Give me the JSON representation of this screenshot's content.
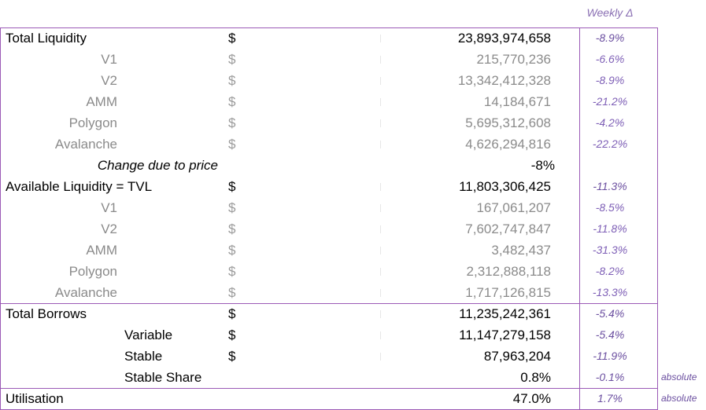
{
  "header": {
    "weekly_delta": "Weekly Δ"
  },
  "rows": [
    {
      "label": "Total Liquidity",
      "dollar": "$",
      "value": "23,893,974,658",
      "pct": "-8.9%",
      "note": ""
    },
    {
      "label": "V1",
      "dollar": "$",
      "value": "215,770,236",
      "pct": "-6.6%",
      "note": ""
    },
    {
      "label": "V2",
      "dollar": "$",
      "value": "13,342,412,328",
      "pct": "-8.9%",
      "note": ""
    },
    {
      "label": "AMM",
      "dollar": "$",
      "value": "14,184,671",
      "pct": "-21.2%",
      "note": ""
    },
    {
      "label": "Polygon",
      "dollar": "$",
      "value": "5,695,312,608",
      "pct": "-4.2%",
      "note": ""
    },
    {
      "label": "Avalanche",
      "dollar": "$",
      "value": "4,626,294,816",
      "pct": "-22.2%",
      "note": ""
    },
    {
      "label": "Change due to price",
      "dollar": "",
      "value": "-8%",
      "pct": "",
      "note": ""
    },
    {
      "label": "Available Liquidity  = TVL",
      "dollar": "$",
      "value": "11,803,306,425",
      "pct": "-11.3%",
      "note": ""
    },
    {
      "label": "V1",
      "dollar": "$",
      "value": "167,061,207",
      "pct": "-8.5%",
      "note": ""
    },
    {
      "label": "V2",
      "dollar": "$",
      "value": "7,602,747,847",
      "pct": "-11.8%",
      "note": ""
    },
    {
      "label": "AMM",
      "dollar": "$",
      "value": "3,482,437",
      "pct": "-31.3%",
      "note": ""
    },
    {
      "label": "Polygon",
      "dollar": "$",
      "value": "2,312,888,118",
      "pct": "-8.2%",
      "note": ""
    },
    {
      "label": "Avalanche",
      "dollar": "$",
      "value": "1,717,126,815",
      "pct": "-13.3%",
      "note": ""
    },
    {
      "label": "Total Borrows",
      "dollar": "$",
      "value": "11,235,242,361",
      "pct": "-5.4%",
      "note": ""
    },
    {
      "label": "Variable",
      "dollar": "$",
      "value": "11,147,279,158",
      "pct": "-5.4%",
      "note": ""
    },
    {
      "label": "Stable",
      "dollar": "$",
      "value": "87,963,204",
      "pct": "-11.9%",
      "note": ""
    },
    {
      "label": "Stable Share",
      "dollar": "",
      "value": "0.8%",
      "pct": "-0.1%",
      "note": "absolute"
    },
    {
      "label": "Utilisation",
      "dollar": "",
      "value": "47.0%",
      "pct": "1.7%",
      "note": "absolute"
    }
  ]
}
